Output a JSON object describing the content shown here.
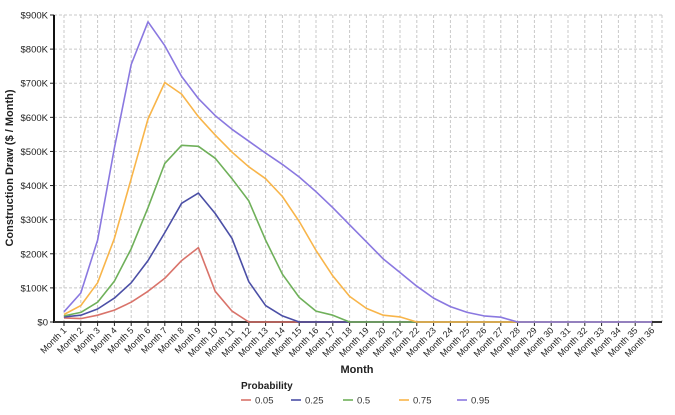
{
  "chart_data": {
    "type": "line",
    "title": "",
    "xlabel": "Month",
    "ylabel": "Construction Draw ($ / Month)",
    "ylim": [
      0,
      900000
    ],
    "y_ticks": [
      "$0",
      "$100K",
      "$200K",
      "$300K",
      "$400K",
      "$500K",
      "$600K",
      "$700K",
      "$800K",
      "$900K"
    ],
    "grid": true,
    "legend_title": "Probability",
    "legend_position": "bottom",
    "categories": [
      "Month 1",
      "Month 2",
      "Month 3",
      "Month 4",
      "Month 5",
      "Month 6",
      "Month 7",
      "Month 8",
      "Month 9",
      "Month 10",
      "Month 11",
      "Month 12",
      "Month 13",
      "Month 14",
      "Month 15",
      "Month 16",
      "Month 17",
      "Month 18",
      "Month 19",
      "Month 20",
      "Month 21",
      "Month 22",
      "Month 23",
      "Month 24",
      "Month 25",
      "Month 26",
      "Month 27",
      "Month 28",
      "Month 29",
      "Month 30",
      "Month 31",
      "Month 32",
      "Month 33",
      "Month 34",
      "Month 35",
      "Month 36"
    ],
    "series": [
      {
        "name": "0.05",
        "color": "#d9736a",
        "values": [
          12000,
          10000,
          20000,
          35000,
          58000,
          90000,
          128000,
          180000,
          218000,
          90000,
          32000,
          0,
          0,
          0,
          0,
          0,
          0,
          0,
          0,
          0,
          0,
          0,
          0,
          0,
          0,
          0,
          0,
          0,
          0,
          0,
          0,
          0,
          0,
          0,
          0,
          0
        ]
      },
      {
        "name": "0.25",
        "color": "#4b4fa6",
        "values": [
          15000,
          20000,
          38000,
          70000,
          115000,
          180000,
          262000,
          348000,
          378000,
          318000,
          245000,
          118000,
          48000,
          18000,
          0,
          0,
          0,
          0,
          0,
          0,
          0,
          0,
          0,
          0,
          0,
          0,
          0,
          0,
          0,
          0,
          0,
          0,
          0,
          0,
          0,
          0
        ]
      },
      {
        "name": "0.5",
        "color": "#6fb05a",
        "values": [
          18000,
          28000,
          58000,
          120000,
          215000,
          335000,
          465000,
          518000,
          515000,
          480000,
          420000,
          355000,
          240000,
          140000,
          72000,
          32000,
          20000,
          0,
          0,
          0,
          0,
          0,
          0,
          0,
          0,
          0,
          0,
          0,
          0,
          0,
          0,
          0,
          0,
          0,
          0,
          0
        ]
      },
      {
        "name": "0.75",
        "color": "#f8b54a",
        "values": [
          22000,
          48000,
          115000,
          245000,
          420000,
          595000,
          702000,
          668000,
          602000,
          548000,
          498000,
          455000,
          420000,
          368000,
          295000,
          210000,
          135000,
          75000,
          40000,
          20000,
          15000,
          0,
          0,
          0,
          0,
          0,
          0,
          0,
          0,
          0,
          0,
          0,
          0,
          0,
          0,
          0
        ]
      },
      {
        "name": "0.95",
        "color": "#8a78e0",
        "values": [
          30000,
          85000,
          240000,
          510000,
          755000,
          880000,
          810000,
          720000,
          655000,
          605000,
          565000,
          530000,
          495000,
          462000,
          425000,
          382000,
          335000,
          285000,
          235000,
          185000,
          145000,
          105000,
          70000,
          45000,
          28000,
          18000,
          14000,
          0,
          0,
          0,
          0,
          0,
          0,
          0,
          0,
          0
        ]
      }
    ]
  },
  "axes": {
    "ylabel": "Construction Draw ($ / Month)",
    "xlabel": "Month"
  },
  "legend": {
    "title": "Probability",
    "items": [
      {
        "label": "0.05",
        "color": "#d9736a"
      },
      {
        "label": "0.25",
        "color": "#4b4fa6"
      },
      {
        "label": "0.5",
        "color": "#6fb05a"
      },
      {
        "label": "0.75",
        "color": "#f8b54a"
      },
      {
        "label": "0.95",
        "color": "#8a78e0"
      }
    ]
  }
}
